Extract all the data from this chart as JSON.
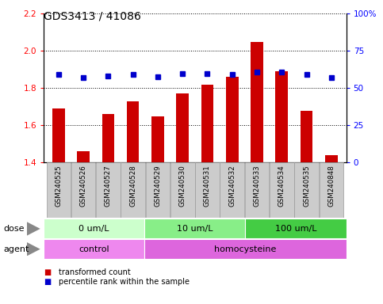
{
  "title": "GDS3413 / 41086",
  "samples": [
    "GSM240525",
    "GSM240526",
    "GSM240527",
    "GSM240528",
    "GSM240529",
    "GSM240530",
    "GSM240531",
    "GSM240532",
    "GSM240533",
    "GSM240534",
    "GSM240535",
    "GSM240848"
  ],
  "transformed_count": [
    1.69,
    1.46,
    1.66,
    1.73,
    1.65,
    1.77,
    1.82,
    1.86,
    2.05,
    1.89,
    1.68,
    1.44
  ],
  "percentile_rank_pct": [
    59.4,
    56.9,
    58.1,
    59.4,
    57.8,
    59.8,
    59.8,
    59.4,
    60.6,
    61.0,
    59.1,
    56.9
  ],
  "ylim_left": [
    1.4,
    2.2
  ],
  "ylim_right": [
    0,
    100
  ],
  "yticks_left": [
    1.4,
    1.6,
    1.8,
    2.0,
    2.2
  ],
  "yticks_right": [
    0,
    25,
    50,
    75,
    100
  ],
  "ytick_labels_right": [
    "0",
    "25",
    "50",
    "75",
    "100%"
  ],
  "bar_color": "#cc0000",
  "dot_color": "#0000cc",
  "bar_bottom": 1.4,
  "dose_groups": [
    {
      "label": "0 um/L",
      "start": 0,
      "end": 4,
      "color": "#ccffcc"
    },
    {
      "label": "10 um/L",
      "start": 4,
      "end": 8,
      "color": "#88ee88"
    },
    {
      "label": "100 um/L",
      "start": 8,
      "end": 12,
      "color": "#44cc44"
    }
  ],
  "agent_groups": [
    {
      "label": "control",
      "start": 0,
      "end": 4,
      "color": "#ee88ee"
    },
    {
      "label": "homocysteine",
      "start": 4,
      "end": 12,
      "color": "#dd66dd"
    }
  ],
  "dose_label": "dose",
  "agent_label": "agent",
  "legend_items": [
    {
      "color": "#cc0000",
      "label": "transformed count"
    },
    {
      "color": "#0000cc",
      "label": "percentile rank within the sample"
    }
  ],
  "tick_fontsize": 7.5,
  "title_fontsize": 10,
  "label_fontsize": 8,
  "row_label_fontsize": 8,
  "legend_fontsize": 7,
  "xlabel_rot": -90,
  "grid_style": "dotted",
  "grid_color": "#000000",
  "background_color": "#ffffff",
  "xticklabel_bg": "#cccccc",
  "xticklabel_border": "#999999"
}
